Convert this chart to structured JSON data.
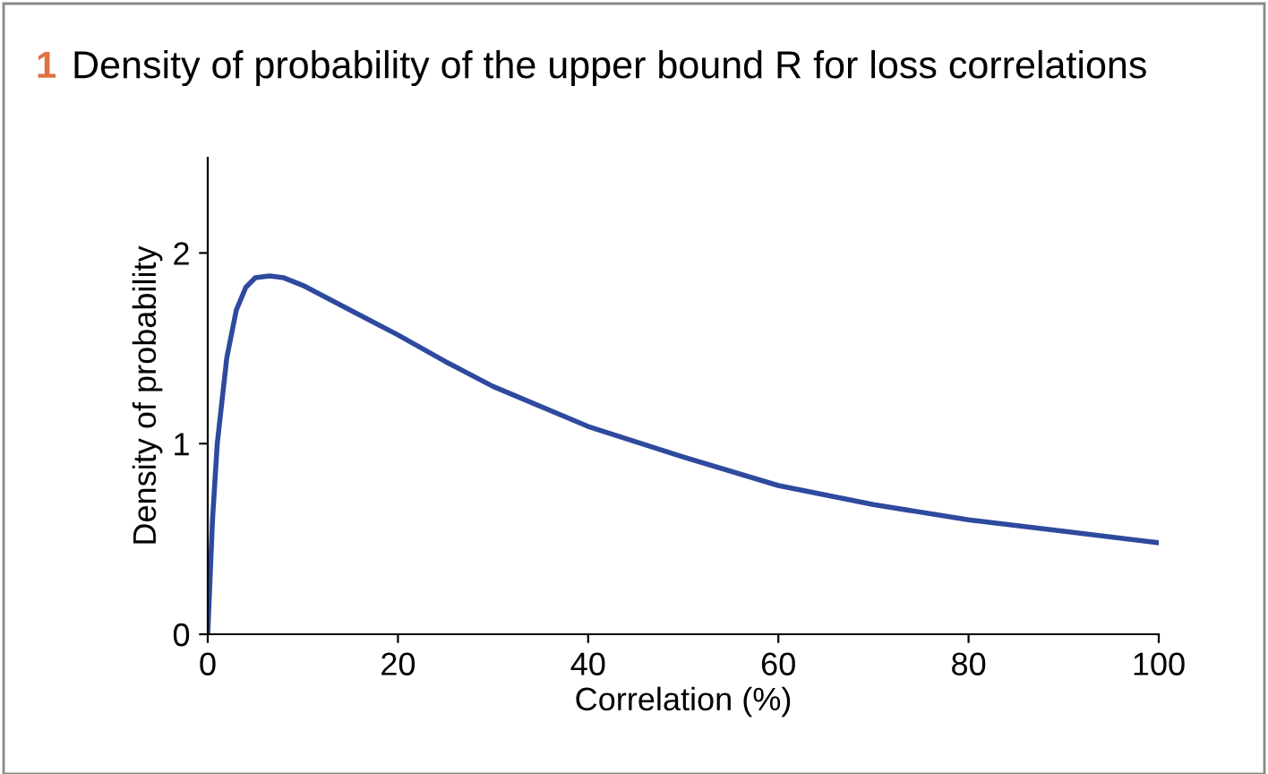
{
  "chart_data": {
    "type": "line",
    "title": "Density of probability of the upper bound R for loss correlations",
    "annotations": [
      "1"
    ],
    "xlabel": "Correlation (%)",
    "ylabel": "Density of probability",
    "x": [
      0,
      0.5,
      1,
      2,
      3,
      4,
      5,
      6.5,
      8,
      10,
      15,
      20,
      25,
      30,
      40,
      50,
      60,
      70,
      80,
      90,
      100
    ],
    "series": [
      {
        "color": "#2e4a9e",
        "values": [
          0,
          0.6,
          1.0,
          1.45,
          1.7,
          1.82,
          1.87,
          1.88,
          1.87,
          1.83,
          1.7,
          1.57,
          1.43,
          1.3,
          1.09,
          0.93,
          0.78,
          0.68,
          0.6,
          0.54,
          0.48
        ]
      }
    ],
    "xlim": [
      0,
      100
    ],
    "ylim": [
      0,
      2.5
    ],
    "xticks": [
      0,
      20,
      40,
      60,
      80,
      100
    ],
    "yticks": [
      0,
      1,
      2
    ],
    "grid": false,
    "legend": false,
    "marker": "none",
    "line_style": "solid"
  }
}
